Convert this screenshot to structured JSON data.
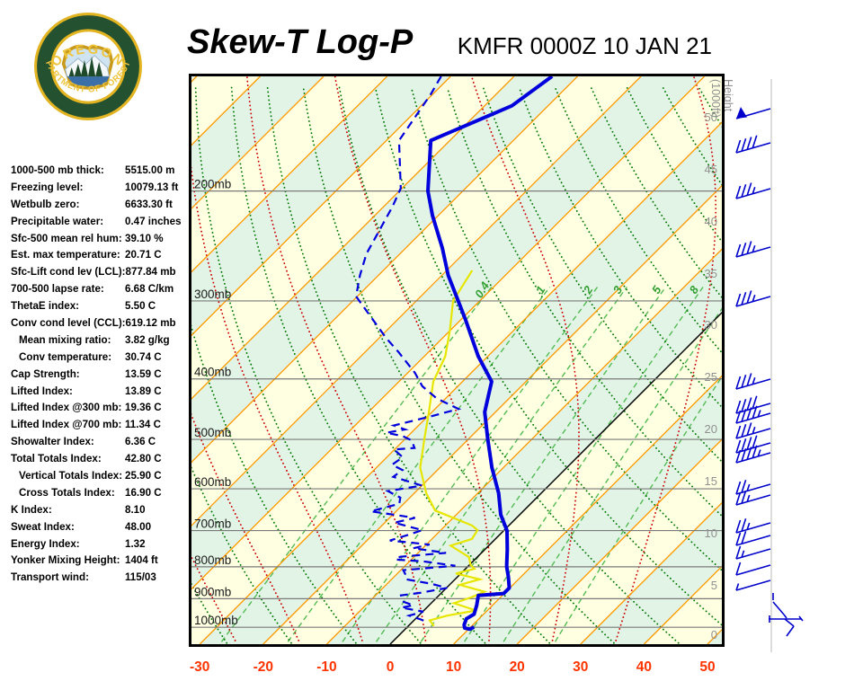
{
  "header": {
    "title": "Skew-T Log-P",
    "station": "KMFR 0000Z 10 JAN 21"
  },
  "logo": {
    "top_text": "OREGON",
    "bottom_text": "DEPARTMENT OF FORESTRY"
  },
  "indices": {
    "rows": [
      {
        "label": "1000-500 mb thick:",
        "value": "5515.00 m",
        "indent": false
      },
      {
        "label": "Freezing level:",
        "value": "10079.13 ft",
        "indent": false
      },
      {
        "label": "Wetbulb zero:",
        "value": "6633.30 ft",
        "indent": false
      },
      {
        "label": "Precipitable water:",
        "value": "0.47 inches",
        "indent": false
      },
      {
        "label": "Sfc-500 mean rel hum:",
        "value": "39.10 %",
        "indent": false
      },
      {
        "label": "Est. max temperature:",
        "value": "20.71 C",
        "indent": false
      },
      {
        "label": "Sfc-Lift cond lev (LCL):",
        "value": "877.84 mb",
        "indent": false
      },
      {
        "label": "700-500 lapse rate:",
        "value": "6.68 C/km",
        "indent": false
      },
      {
        "label": "ThetaE index:",
        "value": "5.50 C",
        "indent": false
      },
      {
        "label": "Conv cond level (CCL):",
        "value": "619.12 mb",
        "indent": false
      },
      {
        "label": "Mean mixing ratio:",
        "value": "3.82 g/kg",
        "indent": true
      },
      {
        "label": "Conv temperature:",
        "value": "30.74 C",
        "indent": true
      },
      {
        "label": "Cap Strength:",
        "value": "13.59 C",
        "indent": false
      },
      {
        "label": "Lifted Index:",
        "value": "13.89 C",
        "indent": false
      },
      {
        "label": "Lifted Index @300 mb:",
        "value": "19.36 C",
        "indent": false
      },
      {
        "label": "Lifted Index @700 mb:",
        "value": "11.34 C",
        "indent": false
      },
      {
        "label": "Showalter Index:",
        "value": "6.36 C",
        "indent": false
      },
      {
        "label": "Total Totals Index:",
        "value": "42.80 C",
        "indent": false
      },
      {
        "label": "Vertical Totals Index:",
        "value": "25.90 C",
        "indent": true
      },
      {
        "label": "Cross Totals Index:",
        "value": "16.90 C",
        "indent": true
      },
      {
        "label": "K Index:",
        "value": "8.10",
        "indent": false
      },
      {
        "label": "Sweat Index:",
        "value": "48.00",
        "indent": false
      },
      {
        "label": "Energy Index:",
        "value": "1.32",
        "indent": false
      },
      {
        "label": "Yonker Mixing Height:",
        "value": "1404 ft",
        "indent": false
      },
      {
        "label": "Transport wind:",
        "value": "115/03",
        "indent": false
      }
    ]
  },
  "chart_data": {
    "type": "skewt-log-p-sounding",
    "title": "Skew-T Log-P",
    "station_time": "KMFR 0000Z 10 JAN 21",
    "x_axis_unit": "C",
    "x_ticks": [
      -30,
      -20,
      -10,
      0,
      10,
      20,
      30,
      40,
      50
    ],
    "pressure_levels_mb": [
      200,
      300,
      400,
      500,
      600,
      700,
      800,
      900,
      1000
    ],
    "pressure_label_suffix": "mb",
    "height_axis_title_line1": "Height",
    "height_axis_title_line2": "(1000ft)",
    "height_labels": [
      [
        50,
        130
      ],
      [
        45,
        188
      ],
      [
        40,
        246
      ],
      [
        35,
        304
      ],
      [
        30,
        361
      ],
      [
        25,
        419
      ],
      [
        20,
        477
      ],
      [
        15,
        535
      ],
      [
        10,
        593
      ],
      [
        5,
        651
      ],
      [
        0,
        706
      ]
    ],
    "isotherm_step_c": 10,
    "mixing_ratio_lines_gkg": [
      0.4,
      1,
      2,
      3,
      5,
      8,
      12,
      20
    ],
    "mixing_ratio_labels": [
      "0.4",
      "1",
      "2",
      "3",
      "5",
      "8"
    ],
    "temperature_profile_p_T": [
      [
        131,
        -64.0
      ],
      [
        146,
        -65.7
      ],
      [
        166,
        -73.0
      ],
      [
        200,
        -65.5
      ],
      [
        219,
        -60.9
      ],
      [
        247,
        -54.2
      ],
      [
        273,
        -49.0
      ],
      [
        300,
        -43.4
      ],
      [
        322,
        -39.2
      ],
      [
        368,
        -31.5
      ],
      [
        404,
        -25.4
      ],
      [
        452,
        -21.7
      ],
      [
        500,
        -16.9
      ],
      [
        555,
        -11.8
      ],
      [
        610,
        -6.7
      ],
      [
        660,
        -3.0
      ],
      [
        700,
        0.5
      ],
      [
        750,
        3.5
      ],
      [
        799,
        6.1
      ],
      [
        830,
        8.0
      ],
      [
        865,
        9.9
      ],
      [
        883,
        9.9
      ],
      [
        889,
        6.2
      ],
      [
        922,
        7.5
      ],
      [
        953,
        8.5
      ],
      [
        969,
        8.0
      ],
      [
        991,
        8.6
      ],
      [
        1003,
        9.2
      ],
      [
        1007,
        10.2
      ],
      [
        999,
        10.5
      ]
    ],
    "dewpoint_profile_p_Td": [
      [
        131,
        -81.5
      ],
      [
        140,
        -80.3
      ],
      [
        166,
        -78.0
      ],
      [
        198,
        -70.2
      ],
      [
        212,
        -68.6
      ],
      [
        228,
        -67.2
      ],
      [
        252,
        -65.3
      ],
      [
        273,
        -62.9
      ],
      [
        295,
        -60.2
      ],
      [
        344,
        -48.9
      ],
      [
        362,
        -44.8
      ],
      [
        391,
        -38.9
      ],
      [
        411,
        -35.6
      ],
      [
        430,
        -31.4
      ],
      [
        447,
        -26.3
      ],
      [
        459,
        -29.4
      ],
      [
        475,
        -33.9
      ],
      [
        482,
        -31.5
      ],
      [
        488,
        -33.9
      ],
      [
        494,
        -30.8
      ],
      [
        502,
        -28.7
      ],
      [
        516,
        -27.1
      ],
      [
        519,
        -30.1
      ],
      [
        534,
        -27.5
      ],
      [
        549,
        -28.0
      ],
      [
        560,
        -25.5
      ],
      [
        574,
        -25.9
      ],
      [
        593,
        -20.0
      ],
      [
        605,
        -24.5
      ],
      [
        620,
        -21.5
      ],
      [
        634,
        -20.7
      ],
      [
        652,
        -24.0
      ],
      [
        668,
        -16.0
      ],
      [
        680,
        -18.5
      ],
      [
        699,
        -12.9
      ],
      [
        712,
        -14.5
      ],
      [
        726,
        -16.4
      ],
      [
        737,
        -9.5
      ],
      [
        747,
        -11.5
      ],
      [
        760,
        -5.6
      ],
      [
        771,
        -12.2
      ],
      [
        779,
        -12.5
      ],
      [
        784,
        -7.9
      ],
      [
        797,
        -2.1
      ],
      [
        810,
        -9.6
      ],
      [
        824,
        -8.5
      ],
      [
        838,
        -7.7
      ],
      [
        852,
        -3.0
      ],
      [
        865,
        0.1
      ],
      [
        881,
        -3.4
      ],
      [
        889,
        -6.0
      ],
      [
        909,
        -4.8
      ],
      [
        922,
        -2.5
      ],
      [
        930,
        -4.0
      ],
      [
        944,
        0.1
      ],
      [
        958,
        -1.5
      ],
      [
        972,
        1.0
      ],
      [
        977,
        1.7
      ]
    ],
    "wetbulb_profile_p_Tw": [
      [
        268,
        -46.0
      ],
      [
        300,
        -44.2
      ],
      [
        335,
        -40.0
      ],
      [
        368,
        -36.7
      ],
      [
        404,
        -34.6
      ],
      [
        452,
        -30.5
      ],
      [
        500,
        -26.9
      ],
      [
        555,
        -23.1
      ],
      [
        610,
        -18.1
      ],
      [
        650,
        -14.0
      ],
      [
        687,
        -5.8
      ],
      [
        699,
        -4.2
      ],
      [
        722,
        -3.7
      ],
      [
        740,
        -6.0
      ],
      [
        772,
        -1.3
      ],
      [
        795,
        0.2
      ],
      [
        806,
        1.4
      ],
      [
        820,
        -0.8
      ],
      [
        838,
        3.9
      ],
      [
        855,
        1.6
      ],
      [
        877,
        6.6
      ],
      [
        894,
        5.5
      ],
      [
        915,
        3.6
      ],
      [
        940,
        8.2
      ],
      [
        958,
        4.5
      ],
      [
        975,
        2.5
      ],
      [
        995,
        4.0
      ]
    ],
    "wind_barbs": [
      {
        "y": 122,
        "kt": 50
      },
      {
        "y": 160,
        "kt": 40
      },
      {
        "y": 211,
        "kt": 35
      },
      {
        "y": 276,
        "kt": 35
      },
      {
        "y": 331,
        "kt": 35
      },
      {
        "y": 423,
        "kt": 35
      },
      {
        "y": 450,
        "kt": 40
      },
      {
        "y": 461,
        "kt": 45
      },
      {
        "y": 478,
        "kt": 35
      },
      {
        "y": 494,
        "kt": 40
      },
      {
        "y": 505,
        "kt": 45
      },
      {
        "y": 540,
        "kt": 25
      },
      {
        "y": 552,
        "kt": 25
      },
      {
        "y": 583,
        "kt": 25
      },
      {
        "y": 597,
        "kt": 20
      },
      {
        "y": 612,
        "kt": 15
      },
      {
        "y": 630,
        "kt": 10
      },
      {
        "y": 647,
        "kt": 5
      }
    ],
    "surface_wind_segments": [
      [
        860,
        660,
        860,
        668
      ],
      [
        860,
        670,
        872,
        684
      ],
      [
        872,
        684,
        875,
        688
      ],
      [
        855,
        689,
        892,
        689
      ],
      [
        889,
        686,
        893,
        691
      ],
      [
        856,
        685,
        856,
        693
      ],
      [
        873,
        689,
        883,
        697
      ],
      [
        883,
        697,
        875,
        708
      ]
    ],
    "colors": {
      "band_yellow": "#FFFFE2",
      "band_green": "#E2F4E6",
      "isotherm": "#FF9900",
      "zero_isotherm": "#000000",
      "pressure_line": "#7A7A7A",
      "dry_adiabat": "#007700",
      "moist_adiabat": "#CC0000",
      "mixing_ratio": "#55BB55",
      "temperature": "#0000DD",
      "dewpoint": "#0000DD",
      "wetbulb": "#E6E600",
      "axis_label": "#FF3300",
      "pressure_text": "#1A1A1A",
      "height_text": "#909090",
      "mixing_label": "#33A033",
      "barb": "#0000CC",
      "anchor_line": "#DCDCDC",
      "border": "#000000"
    }
  }
}
